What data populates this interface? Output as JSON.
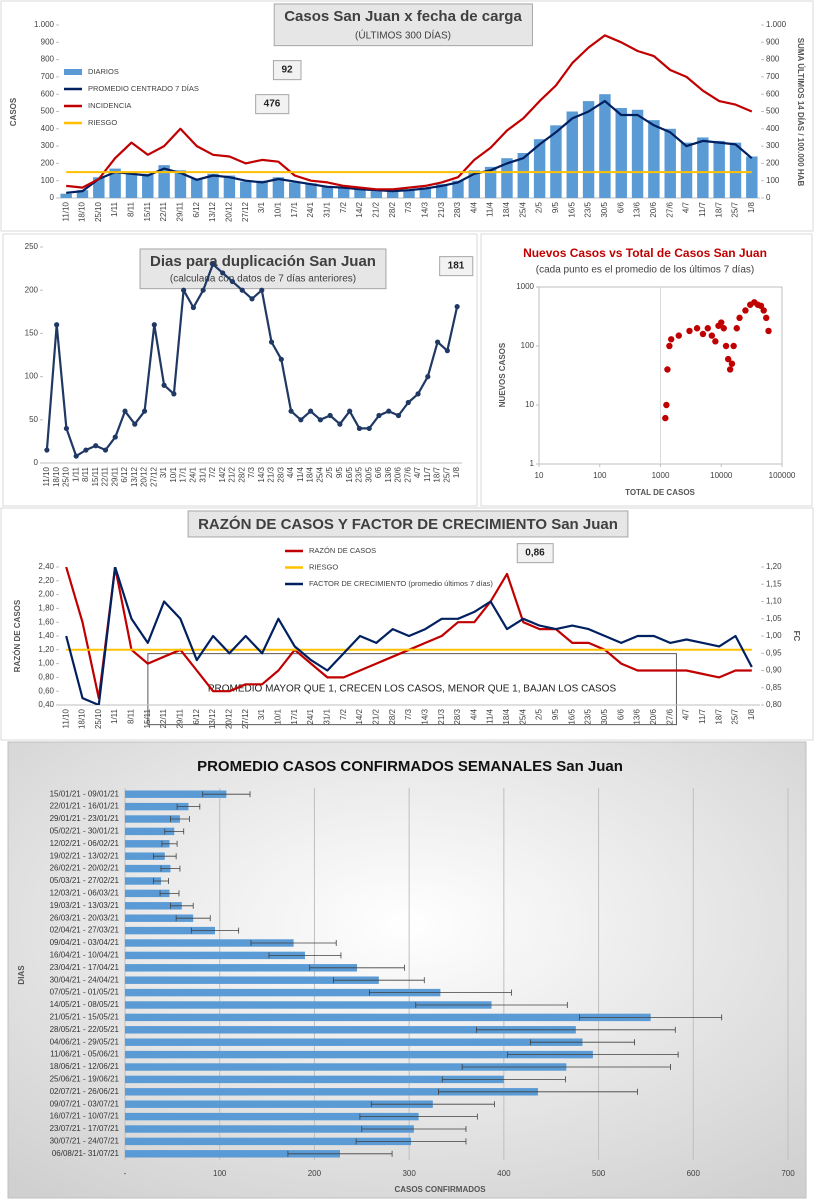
{
  "chart_data": [
    {
      "type": "combo",
      "title": "Casos San Juan x fecha de carga",
      "subtitle": "(ÚLTIMOS 300 DÍAS)",
      "y_label": "CASOS",
      "y2_label": "SUMA ÚLTIMOS 14 DÍAS / 100.000 HAB",
      "annotations": [
        "92",
        "476"
      ],
      "categories": [
        "11/10",
        "18/10",
        "25/10",
        "1/11",
        "8/11",
        "15/11",
        "22/11",
        "29/11",
        "6/12",
        "13/12",
        "20/12",
        "27/12",
        "3/1",
        "10/1",
        "17/1",
        "24/1",
        "31/1",
        "7/2",
        "14/2",
        "21/2",
        "28/2",
        "7/3",
        "14/3",
        "21/3",
        "28/3",
        "4/4",
        "11/4",
        "18/4",
        "25/4",
        "2/5",
        "9/5",
        "16/5",
        "23/5",
        "30/5",
        "6/6",
        "13/6",
        "20/6",
        "27/6",
        "4/7",
        "11/7",
        "18/7",
        "25/7",
        "1/8"
      ],
      "series": [
        {
          "name": "DIARIOS",
          "color": "#5b9bd5",
          "kind": "bar",
          "values": [
            25,
            45,
            120,
            170,
            150,
            140,
            190,
            160,
            110,
            140,
            130,
            95,
            100,
            120,
            90,
            85,
            70,
            60,
            55,
            40,
            45,
            50,
            60,
            80,
            100,
            160,
            180,
            230,
            260,
            340,
            420,
            500,
            560,
            600,
            520,
            510,
            450,
            400,
            320,
            350,
            330,
            320,
            240
          ]
        },
        {
          "name": "PROMEDIO CENTRADO 7 DÍAS",
          "color": "#002060",
          "kind": "line",
          "values": [
            30,
            40,
            110,
            150,
            140,
            130,
            170,
            145,
            105,
            130,
            120,
            100,
            90,
            110,
            95,
            80,
            65,
            60,
            50,
            45,
            40,
            45,
            55,
            70,
            90,
            140,
            160,
            200,
            230,
            310,
            380,
            460,
            500,
            560,
            480,
            480,
            420,
            380,
            300,
            330,
            320,
            310,
            230
          ]
        },
        {
          "name": "INCIDENCIA",
          "color": "#c00000",
          "kind": "line",
          "axis": "y2",
          "values": [
            70,
            60,
            110,
            230,
            320,
            250,
            300,
            400,
            300,
            250,
            240,
            200,
            220,
            210,
            130,
            100,
            90,
            70,
            60,
            50,
            50,
            60,
            70,
            90,
            120,
            220,
            290,
            390,
            460,
            560,
            650,
            780,
            870,
            940,
            900,
            850,
            820,
            740,
            700,
            620,
            560,
            540,
            500
          ]
        },
        {
          "name": "RIESGO",
          "color": "#ffc000",
          "kind": "line",
          "values": [
            150,
            150,
            150,
            150,
            150,
            150,
            150,
            150,
            150,
            150,
            150,
            150,
            150,
            150,
            150,
            150,
            150,
            150,
            150,
            150,
            150,
            150,
            150,
            150,
            150,
            150,
            150,
            150,
            150,
            150,
            150,
            150,
            150,
            150,
            150,
            150,
            150,
            150,
            150,
            150,
            150,
            150,
            150
          ]
        }
      ],
      "ylim": [
        0,
        1000
      ],
      "yticks": [
        0,
        100,
        200,
        300,
        400,
        500,
        600,
        700,
        800,
        900,
        {
          "value": 1000,
          "label": "1.000"
        }
      ],
      "y2lim": [
        0,
        1000
      ],
      "y2ticks": [
        0,
        100,
        200,
        300,
        400,
        500,
        600,
        700,
        800,
        900,
        {
          "value": 1000,
          "label": "1.000"
        }
      ]
    },
    {
      "type": "line",
      "title": "Dias para duplicación San Juan",
      "subtitle": "(calculada con datos de 7 días anteriores)",
      "annotations": [
        "181"
      ],
      "categories": [
        "11/10",
        "18/10",
        "25/10",
        "1/11",
        "8/11",
        "15/11",
        "22/11",
        "29/11",
        "6/12",
        "13/12",
        "20/12",
        "27/12",
        "3/1",
        "10/1",
        "17/1",
        "24/1",
        "31/1",
        "7/2",
        "14/2",
        "21/2",
        "28/2",
        "7/3",
        "14/3",
        "21/3",
        "28/3",
        "4/4",
        "11/4",
        "18/4",
        "25/4",
        "2/5",
        "9/5",
        "16/5",
        "23/5",
        "30/5",
        "6/6",
        "13/6",
        "20/6",
        "27/6",
        "4/7",
        "11/7",
        "18/7",
        "25/7",
        "1/8"
      ],
      "series": [
        {
          "color": "#1f3864",
          "values": [
            15,
            160,
            40,
            8,
            15,
            20,
            15,
            30,
            60,
            45,
            60,
            160,
            90,
            80,
            200,
            180,
            200,
            230,
            220,
            210,
            200,
            190,
            200,
            140,
            120,
            60,
            50,
            60,
            50,
            55,
            45,
            60,
            40,
            40,
            55,
            60,
            55,
            70,
            80,
            100,
            140,
            130,
            181
          ]
        }
      ],
      "markers": true,
      "ylim": [
        0,
        250
      ],
      "yticks": [
        0,
        50,
        100,
        150,
        200,
        250
      ]
    },
    {
      "type": "scatter",
      "title": "Nuevos Casos vs Total de Casos San Juan",
      "subtitle": "(cada punto es el promedio de los últimos 7 días)",
      "x_label": "TOTAL DE CASOS",
      "y_label": "NUEVOS CASOS",
      "color": "#c00000",
      "x": [
        1200,
        1250,
        1300,
        1400,
        1500,
        2000,
        3000,
        4000,
        5000,
        6000,
        7000,
        8000,
        9000,
        10000,
        11000,
        12000,
        13000,
        14000,
        15000,
        16000,
        18000,
        20000,
        25000,
        30000,
        35000,
        40000,
        45000,
        50000,
        55000,
        60000
      ],
      "y": [
        6,
        10,
        40,
        100,
        130,
        150,
        180,
        200,
        160,
        200,
        150,
        120,
        220,
        250,
        200,
        100,
        60,
        40,
        50,
        100,
        200,
        300,
        400,
        500,
        550,
        500,
        480,
        400,
        300,
        180
      ],
      "log_x": true,
      "log_y": true,
      "xlim": [
        10,
        100000
      ],
      "xticks": [
        10,
        100,
        1000,
        10000,
        100000
      ],
      "ylim": [
        1,
        1000
      ],
      "yticks": [
        1,
        10,
        100,
        1000
      ]
    },
    {
      "type": "line",
      "title": "RAZÓN DE CASOS Y FACTOR DE CRECIMIENTO San Juan",
      "annotations": [
        "0,86",
        "PROMEDIO MAYOR QUE 1, CRECEN LOS CASOS, MENOR QUE 1, BAJAN LOS CASOS"
      ],
      "y_label": "RAZÓN DE CASOS",
      "y2_label": "FC",
      "categories": [
        "11/10",
        "18/10",
        "25/10",
        "1/11",
        "8/11",
        "15/11",
        "22/11",
        "29/11",
        "6/12",
        "13/12",
        "20/12",
        "27/12",
        "3/1",
        "10/1",
        "17/1",
        "24/1",
        "31/1",
        "7/2",
        "14/2",
        "21/2",
        "28/2",
        "7/3",
        "14/3",
        "21/3",
        "28/3",
        "4/4",
        "11/4",
        "18/4",
        "25/4",
        "2/5",
        "9/5",
        "16/5",
        "23/5",
        "30/5",
        "6/6",
        "13/6",
        "20/6",
        "27/6",
        "4/7",
        "11/7",
        "18/7",
        "25/7",
        "1/8"
      ],
      "series": [
        {
          "name": "RAZÓN DE CASOS",
          "color": "#c00000",
          "values": [
            2.4,
            1.6,
            0.5,
            2.4,
            1.2,
            1.0,
            1.1,
            1.2,
            0.9,
            0.6,
            0.6,
            0.7,
            0.7,
            0.9,
            1.2,
            1.0,
            0.8,
            0.8,
            0.9,
            1.0,
            1.1,
            1.2,
            1.3,
            1.4,
            1.6,
            1.6,
            1.9,
            2.3,
            1.6,
            1.5,
            1.5,
            1.3,
            1.3,
            1.2,
            1.0,
            0.9,
            0.9,
            0.9,
            0.9,
            0.85,
            0.8,
            0.9,
            0.9
          ]
        },
        {
          "name": "RIESGO",
          "color": "#ffc000",
          "values": [
            1.2,
            1.2,
            1.2,
            1.2,
            1.2,
            1.2,
            1.2,
            1.2,
            1.2,
            1.2,
            1.2,
            1.2,
            1.2,
            1.2,
            1.2,
            1.2,
            1.2,
            1.2,
            1.2,
            1.2,
            1.2,
            1.2,
            1.2,
            1.2,
            1.2,
            1.2,
            1.2,
            1.2,
            1.2,
            1.2,
            1.2,
            1.2,
            1.2,
            1.2,
            1.2,
            1.2,
            1.2,
            1.2,
            1.2,
            1.2,
            1.2,
            1.2,
            1.2
          ]
        },
        {
          "name": "FACTOR DE CRECIMIENTO (promedio últimos 7 días)",
          "color": "#002060",
          "axis": "y2",
          "values": [
            1.0,
            0.82,
            0.8,
            1.2,
            1.05,
            0.98,
            1.1,
            1.05,
            0.93,
            1.0,
            0.95,
            1.0,
            0.95,
            1.05,
            0.97,
            0.93,
            0.9,
            0.95,
            1.0,
            0.98,
            1.02,
            1.0,
            1.02,
            1.05,
            1.05,
            1.07,
            1.1,
            1.02,
            1.05,
            1.03,
            1.02,
            1.03,
            1.02,
            1.0,
            0.98,
            1.0,
            1.0,
            0.98,
            0.99,
            0.98,
            0.97,
            1.0,
            0.91
          ]
        }
      ],
      "ylim": [
        0.4,
        2.4
      ],
      "yticks": [
        {
          "value": 0.4,
          "label": "0,40"
        },
        {
          "value": 0.6,
          "label": "0,60"
        },
        {
          "value": 0.8,
          "label": "0,80"
        },
        {
          "value": 1.0,
          "label": "1,00"
        },
        {
          "value": 1.2,
          "label": "1,20"
        },
        {
          "value": 1.4,
          "label": "1,40"
        },
        {
          "value": 1.6,
          "label": "1,60"
        },
        {
          "value": 1.8,
          "label": "1,80"
        },
        {
          "value": 2.0,
          "label": "2,00"
        },
        {
          "value": 2.2,
          "label": "2,20"
        },
        {
          "value": 2.4,
          "label": "2,40"
        }
      ],
      "y2lim": [
        0.8,
        1.2
      ],
      "y2ticks": [
        {
          "value": 0.8,
          "label": "0,80"
        },
        {
          "value": 0.85,
          "label": "0,85"
        },
        {
          "value": 0.9,
          "label": "0,90"
        },
        {
          "value": 0.95,
          "label": "0,95"
        },
        {
          "value": 1.0,
          "label": "1,00"
        },
        {
          "value": 1.05,
          "label": "1,05"
        },
        {
          "value": 1.1,
          "label": "1,10"
        },
        {
          "value": 1.15,
          "label": "1,15"
        },
        {
          "value": 1.2,
          "label": "1,20"
        }
      ]
    },
    {
      "type": "hbar",
      "title": "PROMEDIO CASOS CONFIRMADOS SEMANALES San Juan",
      "x_label": "CASOS CONFIRMADOS",
      "y_label": "DIAS",
      "color": "#5b9bd5",
      "categories": [
        "15/01/21 - 09/01/21",
        "22/01/21 - 16/01/21",
        "29/01/21 - 23/01/21",
        "05/02/21 - 30/01/21",
        "12/02/21 - 06/02/21",
        "19/02/21 - 13/02/21",
        "26/02/21 - 20/02/21",
        "05/03/21 - 27/02/21",
        "12/03/21 - 06/03/21",
        "19/03/21 - 13/03/21",
        "26/03/21 - 20/03/21",
        "02/04/21 - 27/03/21",
        "09/04/21 - 03/04/21",
        "16/04/21 - 10/04/21",
        "23/04/21 - 17/04/21",
        "30/04/21 - 24/04/21",
        "07/05/21 - 01/05/21",
        "14/05/21 - 08/05/21",
        "21/05/21 - 15/05/21",
        "28/05/21 - 22/05/21",
        "04/06/21 - 29/05/21",
        "11/06/21 - 05/06/21",
        "18/06/21 - 12/06/21",
        "25/06/21 - 19/06/21",
        "02/07/21 - 26/06/21",
        "09/07/21 - 03/07/21",
        "16/07/21 - 10/07/21",
        "23/07/21 - 17/07/21",
        "30/07/21 - 24/07/21",
        "06/08/21- 31/07/21"
      ],
      "values": [
        107,
        67,
        58,
        52,
        47,
        42,
        48,
        38,
        47,
        60,
        72,
        95,
        178,
        190,
        245,
        268,
        333,
        387,
        555,
        476,
        483,
        494,
        466,
        400,
        436,
        325,
        310,
        305,
        302,
        227
      ],
      "errors": [
        25,
        12,
        10,
        10,
        8,
        12,
        10,
        8,
        10,
        12,
        18,
        25,
        45,
        38,
        50,
        48,
        75,
        80,
        75,
        105,
        55,
        90,
        110,
        65,
        105,
        65,
        62,
        55,
        58,
        55
      ],
      "xlim": [
        0,
        700
      ],
      "xticks": [
        {
          "value": 0,
          "label": "-"
        },
        100,
        200,
        300,
        400,
        500,
        600,
        700
      ],
      "grid": true
    }
  ]
}
